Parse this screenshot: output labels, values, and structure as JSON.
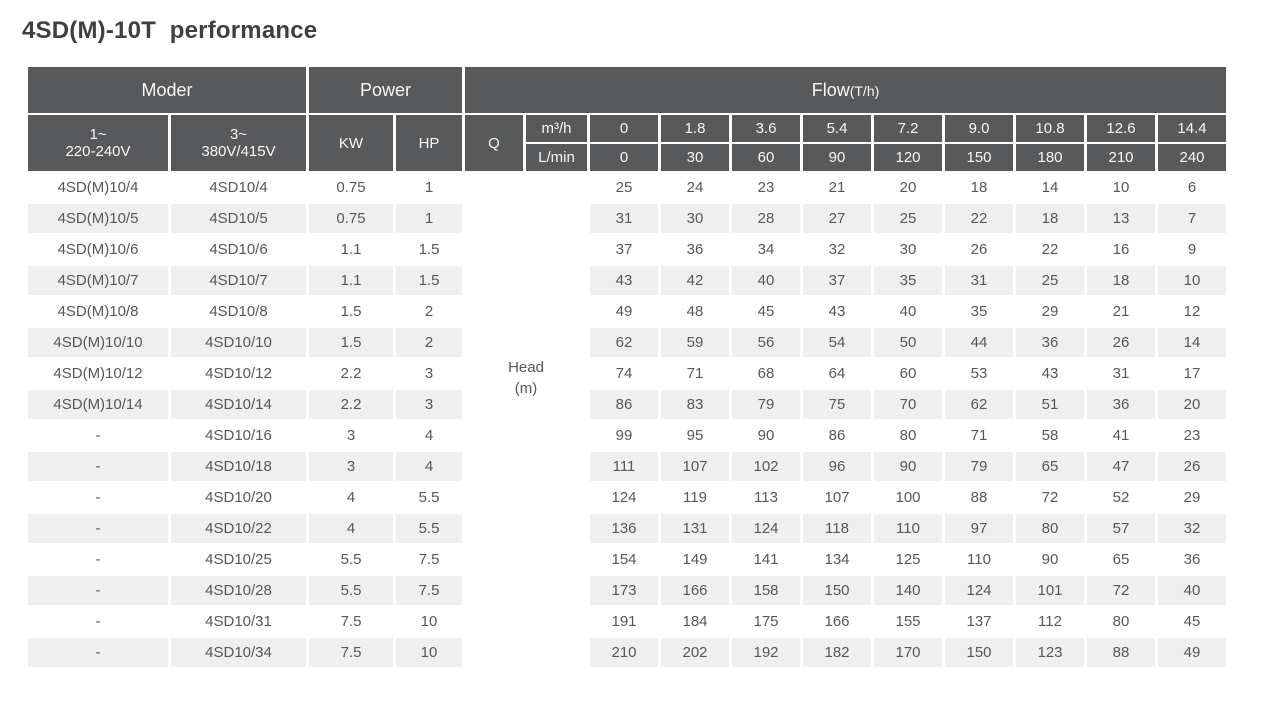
{
  "page_title": "4SD(M)-10T  performance",
  "colors": {
    "header_bg": "#58595b",
    "header_text": "#f7f7f7",
    "stripe": "#efefef",
    "body_text": "#55575a",
    "title_text": "#3e3f42",
    "page_bg": "#ffffff"
  },
  "table": {
    "header": {
      "moder": "Moder",
      "power": "Power",
      "flow_label": "Flow",
      "flow_unit": "(T/h)",
      "phase1": {
        "line1": "1~",
        "line2": "220-240V"
      },
      "phase2": {
        "line1": "3~",
        "line2": "380V/415V"
      },
      "kw": "KW",
      "hp": "HP",
      "q": "Q",
      "unit_m3h": "m³/h",
      "unit_lmin": "L/min",
      "flow_m3h": [
        "0",
        "1.8",
        "3.6",
        "5.4",
        "7.2",
        "9.0",
        "10.8",
        "12.6",
        "14.4"
      ],
      "flow_lmin": [
        "0",
        "30",
        "60",
        "90",
        "120",
        "150",
        "180",
        "210",
        "240"
      ]
    },
    "head_label": {
      "line1": "Head",
      "line2": "(m)"
    },
    "rows": [
      {
        "model1": "4SD(M)10/4",
        "model2": "4SD10/4",
        "kw": "0.75",
        "hp": "1",
        "head": [
          "25",
          "24",
          "23",
          "21",
          "20",
          "18",
          "14",
          "10",
          "6"
        ]
      },
      {
        "model1": "4SD(M)10/5",
        "model2": "4SD10/5",
        "kw": "0.75",
        "hp": "1",
        "head": [
          "31",
          "30",
          "28",
          "27",
          "25",
          "22",
          "18",
          "13",
          "7"
        ]
      },
      {
        "model1": "4SD(M)10/6",
        "model2": "4SD10/6",
        "kw": "1.1",
        "hp": "1.5",
        "head": [
          "37",
          "36",
          "34",
          "32",
          "30",
          "26",
          "22",
          "16",
          "9"
        ]
      },
      {
        "model1": "4SD(M)10/7",
        "model2": "4SD10/7",
        "kw": "1.1",
        "hp": "1.5",
        "head": [
          "43",
          "42",
          "40",
          "37",
          "35",
          "31",
          "25",
          "18",
          "10"
        ]
      },
      {
        "model1": "4SD(M)10/8",
        "model2": "4SD10/8",
        "kw": "1.5",
        "hp": "2",
        "head": [
          "49",
          "48",
          "45",
          "43",
          "40",
          "35",
          "29",
          "21",
          "12"
        ]
      },
      {
        "model1": "4SD(M)10/10",
        "model2": "4SD10/10",
        "kw": "1.5",
        "hp": "2",
        "head": [
          "62",
          "59",
          "56",
          "54",
          "50",
          "44",
          "36",
          "26",
          "14"
        ]
      },
      {
        "model1": "4SD(M)10/12",
        "model2": "4SD10/12",
        "kw": "2.2",
        "hp": "3",
        "head": [
          "74",
          "71",
          "68",
          "64",
          "60",
          "53",
          "43",
          "31",
          "17"
        ]
      },
      {
        "model1": "4SD(M)10/14",
        "model2": "4SD10/14",
        "kw": "2.2",
        "hp": "3",
        "head": [
          "86",
          "83",
          "79",
          "75",
          "70",
          "62",
          "51",
          "36",
          "20"
        ]
      },
      {
        "model1": "-",
        "model2": "4SD10/16",
        "kw": "3",
        "hp": "4",
        "head": [
          "99",
          "95",
          "90",
          "86",
          "80",
          "71",
          "58",
          "41",
          "23"
        ]
      },
      {
        "model1": "-",
        "model2": "4SD10/18",
        "kw": "3",
        "hp": "4",
        "head": [
          "111",
          "107",
          "102",
          "96",
          "90",
          "79",
          "65",
          "47",
          "26"
        ]
      },
      {
        "model1": "-",
        "model2": "4SD10/20",
        "kw": "4",
        "hp": "5.5",
        "head": [
          "124",
          "119",
          "113",
          "107",
          "100",
          "88",
          "72",
          "52",
          "29"
        ]
      },
      {
        "model1": "-",
        "model2": "4SD10/22",
        "kw": "4",
        "hp": "5.5",
        "head": [
          "136",
          "131",
          "124",
          "118",
          "110",
          "97",
          "80",
          "57",
          "32"
        ]
      },
      {
        "model1": "-",
        "model2": "4SD10/25",
        "kw": "5.5",
        "hp": "7.5",
        "head": [
          "154",
          "149",
          "141",
          "134",
          "125",
          "110",
          "90",
          "65",
          "36"
        ]
      },
      {
        "model1": "-",
        "model2": "4SD10/28",
        "kw": "5.5",
        "hp": "7.5",
        "head": [
          "173",
          "166",
          "158",
          "150",
          "140",
          "124",
          "101",
          "72",
          "40"
        ]
      },
      {
        "model1": "-",
        "model2": "4SD10/31",
        "kw": "7.5",
        "hp": "10",
        "head": [
          "191",
          "184",
          "175",
          "166",
          "155",
          "137",
          "112",
          "80",
          "45"
        ]
      },
      {
        "model1": "-",
        "model2": "4SD10/34",
        "kw": "7.5",
        "hp": "10",
        "head": [
          "210",
          "202",
          "192",
          "182",
          "170",
          "150",
          "123",
          "88",
          "49"
        ]
      }
    ]
  }
}
